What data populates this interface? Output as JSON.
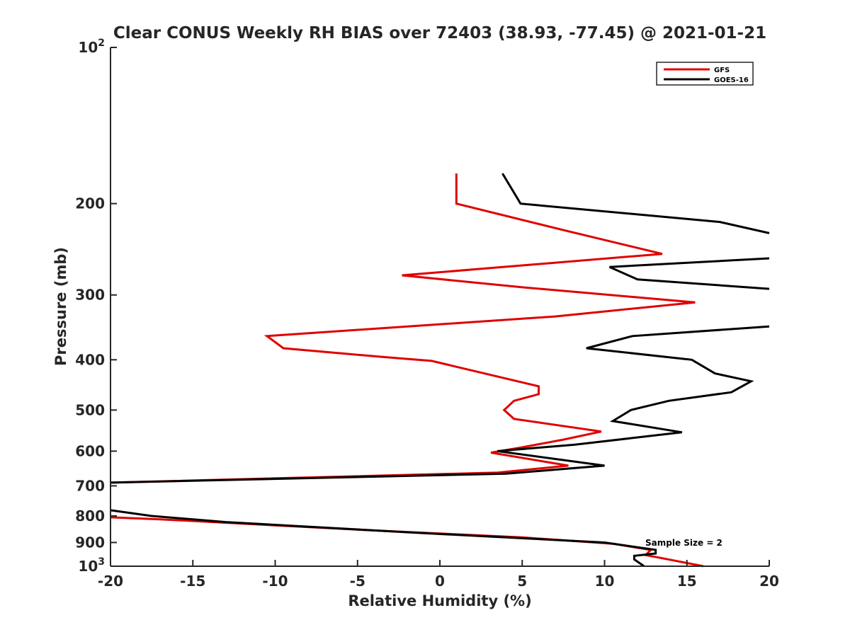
{
  "chart_data": {
    "type": "line",
    "title": "Clear CONUS Weekly RH BIAS over 72403 (38.93, -77.45) @ 2021-01-21",
    "xlabel": "Relative Humidity (%)",
    "ylabel": "Pressure (mb)",
    "xlim": [
      -20,
      20
    ],
    "ylim": [
      100,
      1000
    ],
    "yscale": "log",
    "y_reversed": true,
    "grid": false,
    "legend_position": "top-right",
    "xticks": [
      -20,
      -15,
      -10,
      -5,
      0,
      5,
      10,
      15,
      20
    ],
    "yticks": [
      100,
      200,
      300,
      400,
      500,
      600,
      700,
      800,
      900,
      1000
    ],
    "ytick_labels": [
      {
        "base": "10",
        "exp": "2"
      },
      {
        "base": "200",
        "exp": ""
      },
      {
        "base": "300",
        "exp": ""
      },
      {
        "base": "400",
        "exp": ""
      },
      {
        "base": "500",
        "exp": ""
      },
      {
        "base": "600",
        "exp": ""
      },
      {
        "base": "700",
        "exp": ""
      },
      {
        "base": "800",
        "exp": ""
      },
      {
        "base": "900",
        "exp": ""
      },
      {
        "base": "10",
        "exp": "3"
      }
    ],
    "annotation": "Sample Size = 2",
    "series": [
      {
        "name": "GFS",
        "color": "#e00000",
        "points": [
          [
            1.0,
            175
          ],
          [
            1.0,
            200
          ],
          [
            7.5,
            225
          ],
          [
            13.5,
            250
          ],
          [
            -2.3,
            275
          ],
          [
            5.0,
            290
          ],
          [
            15.5,
            310
          ],
          [
            7.0,
            330
          ],
          [
            -10.5,
            360
          ],
          [
            -9.5,
            380
          ],
          [
            -3.5,
            395
          ],
          [
            -0.5,
            402
          ],
          [
            6.0,
            450
          ],
          [
            6.0,
            466
          ],
          [
            4.5,
            480
          ],
          [
            3.9,
            500
          ],
          [
            4.5,
            520
          ],
          [
            9.8,
            550
          ],
          [
            7.5,
            570
          ],
          [
            5.0,
            590
          ],
          [
            3.1,
            604
          ],
          [
            7.8,
            640
          ],
          [
            3.5,
            660
          ],
          [
            -20.0,
            690
          ],
          [
            null,
            700
          ],
          [
            -20.0,
            805
          ],
          [
            -17.0,
            812
          ],
          [
            -5.0,
            850
          ],
          [
            5.0,
            880
          ],
          [
            10.5,
            905
          ],
          [
            12.8,
            930
          ],
          [
            12.5,
            952
          ],
          [
            13.5,
            965
          ],
          [
            16.0,
            1000
          ]
        ]
      },
      {
        "name": "GOES-16",
        "color": "#000000",
        "points": [
          [
            3.8,
            175
          ],
          [
            4.9,
            200
          ],
          [
            17.0,
            217
          ],
          [
            20.0,
            228
          ],
          [
            null,
            240
          ],
          [
            20.0,
            255
          ],
          [
            10.3,
            265
          ],
          [
            12.0,
            280
          ],
          [
            20.0,
            292
          ],
          [
            null,
            300
          ],
          [
            20.0,
            345
          ],
          [
            11.7,
            360
          ],
          [
            8.9,
            380
          ],
          [
            15.3,
            400
          ],
          [
            16.7,
            425
          ],
          [
            18.9,
            440
          ],
          [
            17.7,
            462
          ],
          [
            13.9,
            480
          ],
          [
            11.6,
            500
          ],
          [
            10.5,
            525
          ],
          [
            14.7,
            552
          ],
          [
            8.2,
            583
          ],
          [
            3.5,
            600
          ],
          [
            10.0,
            640
          ],
          [
            4.0,
            663
          ],
          [
            -20.0,
            690
          ],
          [
            null,
            700
          ],
          [
            -20.0,
            780
          ],
          [
            -17.5,
            800
          ],
          [
            -13.0,
            822
          ],
          [
            -2.0,
            860
          ],
          [
            10.0,
            900
          ],
          [
            13.1,
            930
          ],
          [
            13.1,
            945
          ],
          [
            11.8,
            955
          ],
          [
            11.8,
            970
          ],
          [
            12.4,
            1000
          ]
        ]
      }
    ]
  }
}
